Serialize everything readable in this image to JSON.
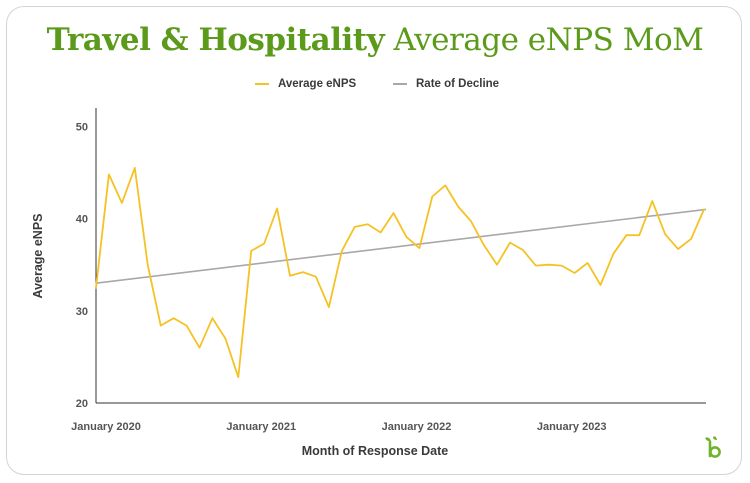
{
  "title": {
    "part1": "Travel & Hospitality",
    "part2": " Average eNPS MoM"
  },
  "chart_data": {
    "type": "line",
    "xlabel": "Month of Response Date",
    "ylabel": "Average eNPS",
    "ylim": [
      20,
      52
    ],
    "yticks": [
      20,
      30,
      40,
      50
    ],
    "x_start": "January 2020",
    "x_ticks": [
      {
        "label": "January 2020",
        "index": 0
      },
      {
        "label": "January 2021",
        "index": 12
      },
      {
        "label": "January 2022",
        "index": 24
      },
      {
        "label": "January 2023",
        "index": 36
      }
    ],
    "grid": false,
    "legend_position": "top-center",
    "series": [
      {
        "name": "Average eNPS",
        "color": "#f5c225",
        "values": [
          32.5,
          44.8,
          41.7,
          45.5,
          35.0,
          28.4,
          29.2,
          28.4,
          26.0,
          29.2,
          27.0,
          22.8,
          36.5,
          37.3,
          41.1,
          33.8,
          34.2,
          33.7,
          30.4,
          36.5,
          39.1,
          39.4,
          38.5,
          40.6,
          38.0,
          36.8,
          42.4,
          43.6,
          41.3,
          39.7,
          37.1,
          35.0,
          37.4,
          36.6,
          34.9,
          35.0,
          34.9,
          34.1,
          35.2,
          32.8,
          36.2,
          38.2,
          38.2,
          41.9,
          38.3,
          36.7,
          37.8,
          41.0
        ]
      },
      {
        "name": "Rate of Decline",
        "color": "#a8a8a8",
        "values": [
          33.0,
          41.0
        ]
      }
    ]
  }
}
